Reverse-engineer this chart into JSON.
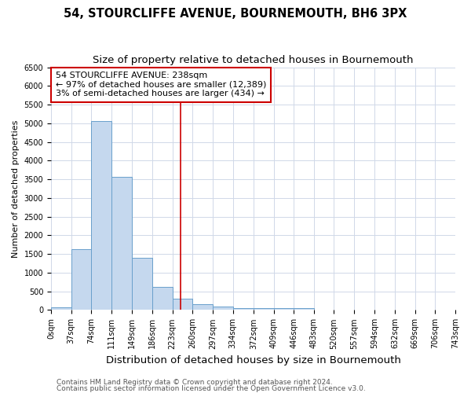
{
  "title": "54, STOURCLIFFE AVENUE, BOURNEMOUTH, BH6 3PX",
  "subtitle": "Size of property relative to detached houses in Bournemouth",
  "xlabel": "Distribution of detached houses by size in Bournemouth",
  "ylabel": "Number of detached properties",
  "footnote1": "Contains HM Land Registry data © Crown copyright and database right 2024.",
  "footnote2": "Contains public sector information licensed under the Open Government Licence v3.0.",
  "annotation_title": "54 STOURCLIFFE AVENUE: 238sqm",
  "annotation_line1": "← 97% of detached houses are smaller (12,389)",
  "annotation_line2": "3% of semi-detached houses are larger (434) →",
  "bin_edges": [
    0,
    37,
    74,
    111,
    149,
    186,
    223,
    260,
    297,
    334,
    372,
    409,
    446,
    483,
    520,
    557,
    594,
    632,
    669,
    706,
    743
  ],
  "bin_labels": [
    "0sqm",
    "37sqm",
    "74sqm",
    "111sqm",
    "149sqm",
    "186sqm",
    "223sqm",
    "260sqm",
    "297sqm",
    "334sqm",
    "372sqm",
    "409sqm",
    "446sqm",
    "483sqm",
    "520sqm",
    "557sqm",
    "594sqm",
    "632sqm",
    "669sqm",
    "706sqm",
    "743sqm"
  ],
  "counts": [
    75,
    1620,
    5060,
    3570,
    1400,
    620,
    310,
    155,
    100,
    60,
    50,
    55,
    50,
    0,
    0,
    0,
    0,
    0,
    0,
    0
  ],
  "bar_fill": "#c5d8ee",
  "bar_edge": "#6aa0cc",
  "vline_color": "#cc0000",
  "vline_x": 238,
  "xlim": [
    0,
    743
  ],
  "ylim": [
    0,
    6500
  ],
  "yticks": [
    0,
    500,
    1000,
    1500,
    2000,
    2500,
    3000,
    3500,
    4000,
    4500,
    5000,
    5500,
    6000,
    6500
  ],
  "bg_color": "#ffffff",
  "grid_color": "#d0d8e8",
  "title_fontsize": 10.5,
  "subtitle_fontsize": 9.5,
  "xlabel_fontsize": 9.5,
  "ylabel_fontsize": 8,
  "tick_fontsize": 7,
  "footnote_fontsize": 6.5,
  "annotation_fontsize": 8
}
